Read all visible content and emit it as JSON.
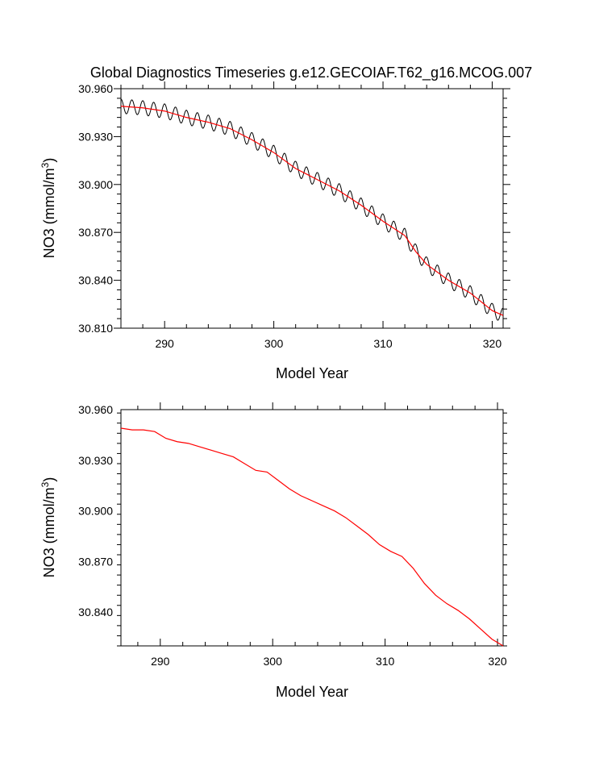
{
  "title": "Global Diagnostics Timeseries g.e12.GECOIAF.T62_g16.MCOG.007",
  "colors": {
    "monthly": "#000000",
    "annual": "#ff0000",
    "axes": "#000000"
  },
  "chart_data": [
    {
      "type": "line",
      "title": "Global Diagnostics Timeseries g.e12.GECOIAF.T62_g16.MCOG.007",
      "xlabel": "Model Year",
      "ylabel_main": "NO3 (mmol/m",
      "ylabel_sup": "3",
      "ylabel_close": ")",
      "xlim": [
        286,
        321
      ],
      "ylim": [
        30.81,
        30.96
      ],
      "xticks": [
        "290",
        "300",
        "310",
        "320"
      ],
      "yticks": [
        "30.810",
        "30.840",
        "30.870",
        "30.900",
        "30.930",
        "30.960"
      ],
      "series": [
        {
          "name": "monthly",
          "seasonal_amplitude": 0.0045,
          "x": [
            286,
            288,
            290,
            292,
            294,
            296,
            298,
            300,
            302,
            304,
            306,
            308,
            310,
            312,
            313,
            314,
            316,
            318,
            320,
            321
          ],
          "values": [
            30.949,
            30.948,
            30.946,
            30.942,
            30.939,
            30.935,
            30.928,
            30.92,
            30.91,
            30.903,
            30.896,
            30.887,
            30.877,
            30.868,
            30.858,
            30.85,
            30.84,
            30.832,
            30.821,
            30.818
          ]
        },
        {
          "name": "annual",
          "x": [
            286,
            288,
            290,
            292,
            294,
            296,
            298,
            300,
            302,
            304,
            306,
            308,
            310,
            312,
            313,
            314,
            316,
            318,
            320,
            321
          ],
          "values": [
            30.949,
            30.948,
            30.946,
            30.942,
            30.939,
            30.935,
            30.928,
            30.92,
            30.91,
            30.903,
            30.896,
            30.887,
            30.877,
            30.868,
            30.858,
            30.85,
            30.84,
            30.832,
            30.821,
            30.818
          ]
        }
      ]
    },
    {
      "type": "line",
      "title": "",
      "xlabel": "Model Year",
      "ylabel_main": "NO3 (mmol/m",
      "ylabel_sup": "3",
      "ylabel_close": ")",
      "xlim": [
        286.5,
        320.5
      ],
      "ylim": [
        30.82,
        30.96
      ],
      "xticks": [
        "290",
        "300",
        "310",
        "320"
      ],
      "yticks": [
        "30.840",
        "30.870",
        "30.900",
        "30.930",
        "30.960"
      ],
      "series": [
        {
          "name": "annual",
          "x": [
            286.5,
            287.5,
            288.5,
            289.5,
            290.5,
            291.5,
            292.5,
            293.5,
            294.5,
            295.5,
            296.5,
            297.5,
            298.5,
            299.5,
            300.5,
            301.5,
            302.5,
            303.5,
            304.5,
            305.5,
            306.5,
            307.5,
            308.5,
            309.5,
            310.5,
            311.5,
            312.5,
            313.5,
            314.5,
            315.5,
            316.5,
            317.5,
            318.5,
            319.5,
            320.5
          ],
          "values": [
            30.949,
            30.948,
            30.948,
            30.947,
            30.943,
            30.941,
            30.94,
            30.938,
            30.936,
            30.934,
            30.932,
            30.928,
            30.924,
            30.923,
            30.918,
            30.913,
            30.909,
            30.906,
            30.903,
            30.9,
            30.896,
            30.891,
            30.886,
            30.88,
            30.876,
            30.873,
            30.866,
            30.857,
            30.85,
            30.845,
            30.841,
            30.836,
            30.83,
            30.824,
            30.82
          ]
        }
      ]
    }
  ]
}
